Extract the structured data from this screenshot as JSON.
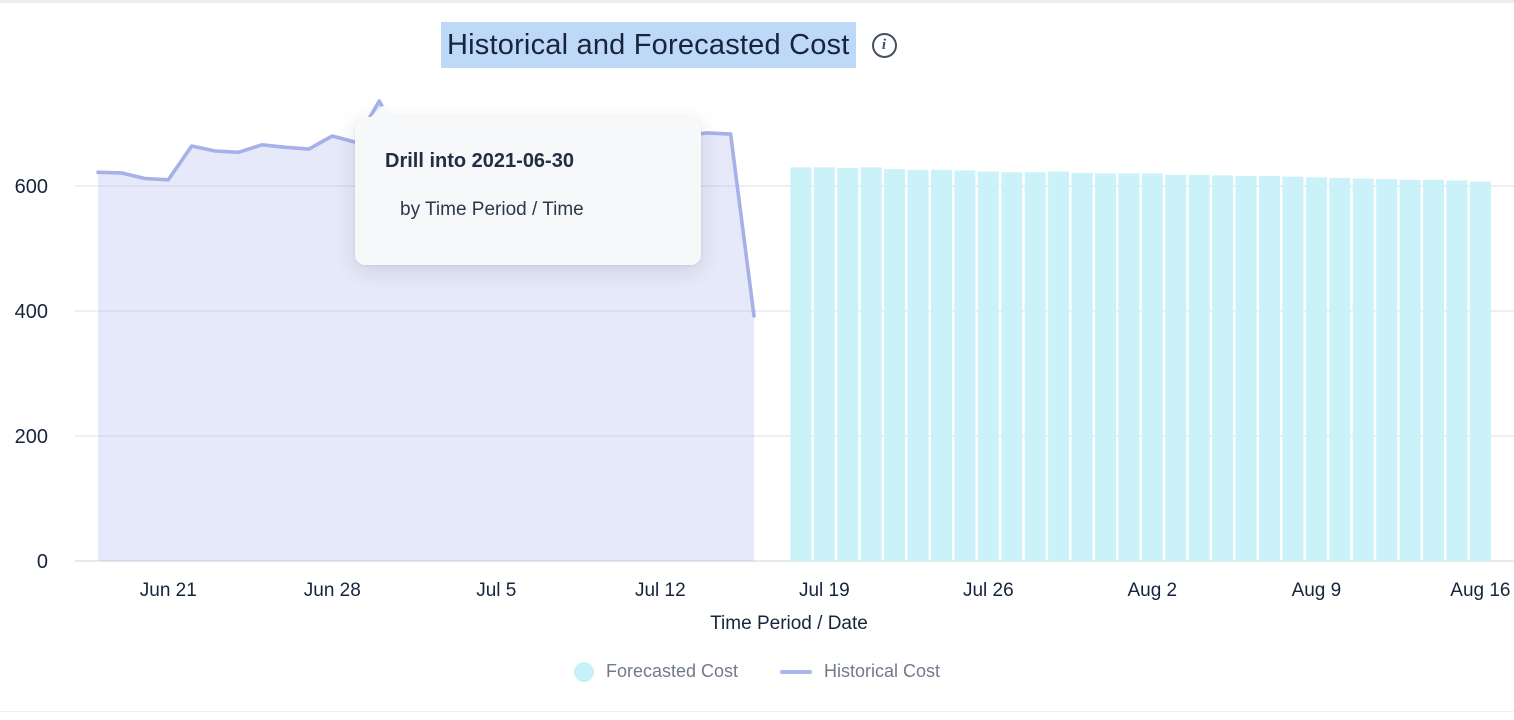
{
  "page": {
    "title": "Historical and Forecasted Cost",
    "title_highlight_color": "#bed9f8",
    "info_icon_glyph": "i"
  },
  "tooltip": {
    "title": "Drill into 2021-06-30",
    "subtitle": "by Time Period / Time"
  },
  "legend": [
    {
      "label": "Forecasted Cost",
      "swatch": "circle",
      "color": "#c6f1f8"
    },
    {
      "label": "Historical Cost",
      "swatch": "line",
      "color": "#a9b4e9"
    }
  ],
  "colors": {
    "bar_fill": "#cbf2f9",
    "line_stroke": "#a6b1e8",
    "area_fill_rgba": "rgba(166,177,232,0.28)",
    "gridline": "#e9eaee",
    "axis_baseline": "#dfe0e4",
    "axis_text": "#16243c",
    "legend_text": "#717a88"
  },
  "chart_data": {
    "type": "mixed",
    "title": "Historical and Forecasted Cost",
    "xlabel": "Time Period / Date",
    "ylabel": "",
    "ylim": [
      0,
      740
    ],
    "y_ticks": [
      0,
      200,
      400,
      600
    ],
    "grid": true,
    "legend_position": "bottom",
    "x_ticks": [
      {
        "label": "Jun 21",
        "date": "2021-06-21"
      },
      {
        "label": "Jun 28",
        "date": "2021-06-28"
      },
      {
        "label": "Jul 5",
        "date": "2021-07-05"
      },
      {
        "label": "Jul 12",
        "date": "2021-07-12"
      },
      {
        "label": "Jul 19",
        "date": "2021-07-19"
      },
      {
        "label": "Jul 26",
        "date": "2021-07-26"
      },
      {
        "label": "Aug 2",
        "date": "2021-08-02"
      },
      {
        "label": "Aug 9",
        "date": "2021-08-09"
      },
      {
        "label": "Aug 16",
        "date": "2021-08-16"
      }
    ],
    "series": [
      {
        "name": "Historical Cost",
        "type": "area-line",
        "dates": [
          "2021-06-18",
          "2021-06-19",
          "2021-06-20",
          "2021-06-21",
          "2021-06-22",
          "2021-06-23",
          "2021-06-24",
          "2021-06-25",
          "2021-06-26",
          "2021-06-27",
          "2021-06-28",
          "2021-06-29",
          "2021-06-30",
          "2021-07-01",
          "2021-07-02",
          "2021-07-03",
          "2021-07-04",
          "2021-07-05",
          "2021-07-06",
          "2021-07-07",
          "2021-07-08",
          "2021-07-09",
          "2021-07-10",
          "2021-07-11",
          "2021-07-12",
          "2021-07-13",
          "2021-07-14",
          "2021-07-15",
          "2021-07-16"
        ],
        "values": [
          622,
          621,
          612,
          610,
          664,
          656,
          654,
          666,
          662,
          659,
          680,
          670,
          736,
          668,
          662,
          665,
          660,
          663,
          665,
          668,
          670,
          672,
          670,
          673,
          675,
          680,
          685,
          683,
          392
        ]
      },
      {
        "name": "Forecasted Cost",
        "type": "bar",
        "dates": [
          "2021-07-18",
          "2021-07-19",
          "2021-07-20",
          "2021-07-21",
          "2021-07-22",
          "2021-07-23",
          "2021-07-24",
          "2021-07-25",
          "2021-07-26",
          "2021-07-27",
          "2021-07-28",
          "2021-07-29",
          "2021-07-30",
          "2021-07-31",
          "2021-08-01",
          "2021-08-02",
          "2021-08-03",
          "2021-08-04",
          "2021-08-05",
          "2021-08-06",
          "2021-08-07",
          "2021-08-08",
          "2021-08-09",
          "2021-08-10",
          "2021-08-11",
          "2021-08-12",
          "2021-08-13",
          "2021-08-14",
          "2021-08-15",
          "2021-08-16"
        ],
        "values": [
          630,
          630,
          629,
          630,
          627,
          626,
          626,
          625,
          623,
          622,
          622,
          623,
          621,
          620,
          620,
          620,
          618,
          618,
          617,
          616,
          616,
          615,
          614,
          613,
          612,
          611,
          610,
          610,
          609,
          607
        ]
      }
    ]
  }
}
